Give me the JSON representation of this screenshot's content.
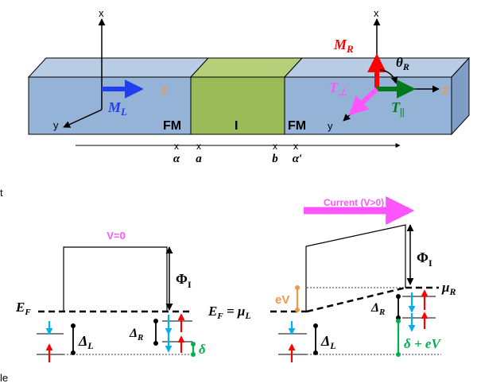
{
  "top": {
    "axes_left": {
      "x": "x",
      "y": "y",
      "z": "z"
    },
    "axes_right": {
      "x": "x",
      "y": "y",
      "z": "z"
    },
    "layers": {
      "left": "FM",
      "middle": "I",
      "right": "FM"
    },
    "vectors": {
      "ml": {
        "main": "M",
        "sub": "L"
      },
      "mr": {
        "main": "M",
        "sub": "R"
      },
      "theta": {
        "main": "θ",
        "sub": "R"
      },
      "tperp": {
        "main": "T",
        "sub": "⊥"
      },
      "tpar": {
        "main": "T",
        "sub": "||"
      }
    },
    "positions": [
      "α",
      "a",
      "b",
      "α′"
    ]
  },
  "bottom_left": {
    "voltage": "V=0",
    "fermi": {
      "main": "E",
      "sub": "F"
    },
    "phi": {
      "main": "Φ",
      "sub": "I"
    },
    "delta_l": {
      "main": "Δ",
      "sub": "L"
    },
    "delta_r": {
      "main": "Δ",
      "sub": "R"
    },
    "delta": "δ"
  },
  "bottom_right": {
    "current": "Current (V>0)",
    "fermi_eq": {
      "e": "E",
      "esub": "F",
      "mid": " = μ",
      "msub": "L"
    },
    "ev": "eV",
    "mu_r": {
      "main": "μ",
      "sub": "R"
    },
    "phi": {
      "main": "Φ",
      "sub": "I"
    },
    "delta_l": {
      "main": "Δ",
      "sub": "L"
    },
    "delta_r": {
      "main": "Δ",
      "sub": "R"
    },
    "delta_ev": "δ + eV"
  },
  "edge_text": {
    "t": "t",
    "le": "le"
  },
  "colors": {
    "fm_front": "#95b3d7",
    "fm_top": "#b8cce4",
    "fm_side": "#7f9ec7",
    "i_front": "#9bbb59",
    "i_top": "#b6d07a",
    "blue": "#1f3ff0",
    "red": "#ff0000",
    "green": "#007a1a",
    "pink": "#ff55ff",
    "orange": "#f79646",
    "spin_blue": "#00b0f0",
    "delta_green": "#00b050"
  }
}
